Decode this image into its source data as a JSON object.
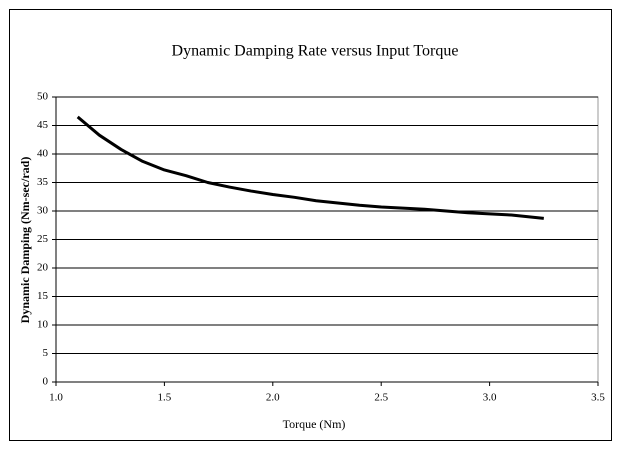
{
  "chart_data": {
    "type": "line",
    "title": "Dynamic Damping Rate versus Input Torque",
    "x_label": "Torque (Nm)",
    "y_label": "Dynamic Damping (Nm-sec/rad)",
    "x": [
      1.1,
      1.2,
      1.3,
      1.4,
      1.5,
      1.6,
      1.7,
      1.8,
      1.9,
      2.0,
      2.1,
      2.2,
      2.3,
      2.4,
      2.5,
      2.6,
      2.7,
      2.8,
      2.9,
      3.0,
      3.1,
      3.2,
      3.25
    ],
    "series": [
      {
        "color": "#000000",
        "values": [
          46.5,
          43.3,
          40.8,
          38.7,
          37.2,
          36.2,
          35.0,
          34.2,
          33.5,
          32.9,
          32.4,
          31.8,
          31.4,
          31.0,
          30.7,
          30.5,
          30.3,
          30.0,
          29.7,
          29.5,
          29.3,
          28.9,
          28.7
        ]
      }
    ],
    "xlim": [
      1.0,
      3.5
    ],
    "xticks": [
      {
        "value": 1.0,
        "label": "1.0"
      },
      1.5,
      {
        "value": 2.0,
        "label": "2.0"
      },
      2.5,
      {
        "value": 3.0,
        "label": "3.0"
      },
      3.5
    ],
    "ylim": [
      0,
      50
    ],
    "yticks": [
      0,
      5,
      10,
      15,
      20,
      25,
      30,
      35,
      40,
      45,
      50
    ],
    "grid": true
  }
}
